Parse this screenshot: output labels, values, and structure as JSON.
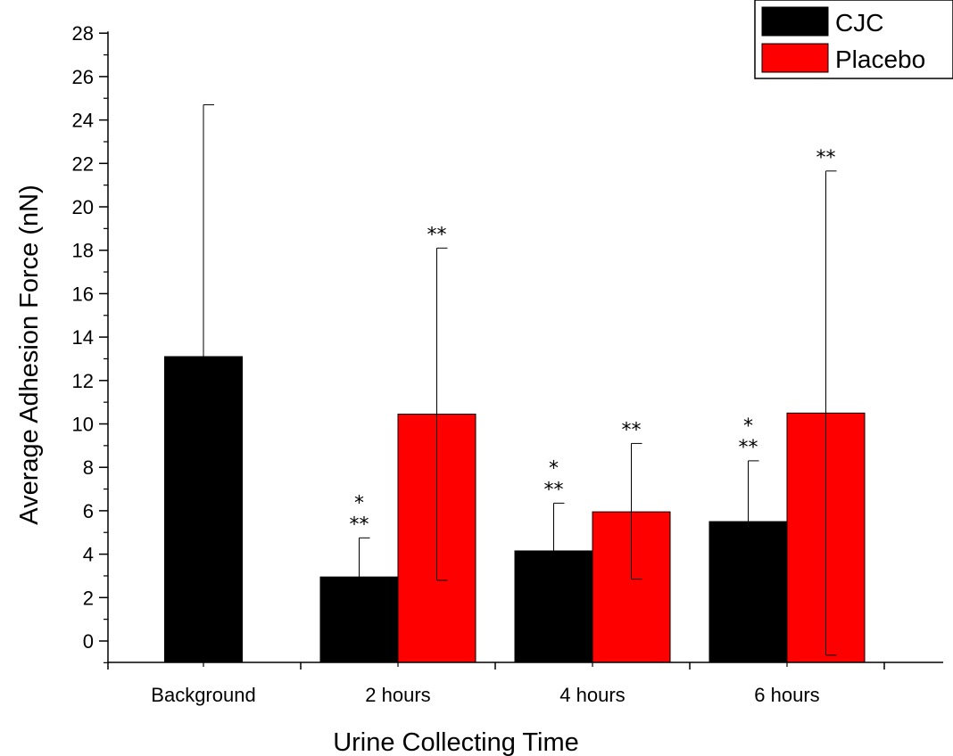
{
  "chart_data": {
    "type": "bar",
    "title": "",
    "xlabel": "Urine Collecting Time",
    "ylabel": "Average Adhesion Force (nN)",
    "ylim": [
      -1,
      28
    ],
    "y_ticks": [
      "0",
      "2",
      "4",
      "6",
      "8",
      "10",
      "12",
      "14",
      "16",
      "18",
      "20",
      "22",
      "24",
      "26",
      "28"
    ],
    "categories": [
      "Background",
      "2 hours",
      "4 hours",
      "6 hours"
    ],
    "legend_position": "top-right",
    "series": [
      {
        "name": "CJC",
        "color": "#000000",
        "values": [
          13.1,
          2.95,
          4.15,
          5.5
        ],
        "error_upper": [
          24.7,
          4.75,
          6.35,
          8.3
        ],
        "annotations": [
          "",
          "*\n**",
          "*\n**",
          "*\n**"
        ]
      },
      {
        "name": "Placebo",
        "color": "#ff0000",
        "values": [
          null,
          10.45,
          5.95,
          10.5
        ],
        "error_upper": [
          null,
          18.1,
          9.1,
          21.65
        ],
        "error_lower": [
          null,
          2.8,
          2.85,
          -0.65
        ],
        "annotations": [
          "",
          "**",
          "**",
          "**"
        ]
      }
    ]
  }
}
